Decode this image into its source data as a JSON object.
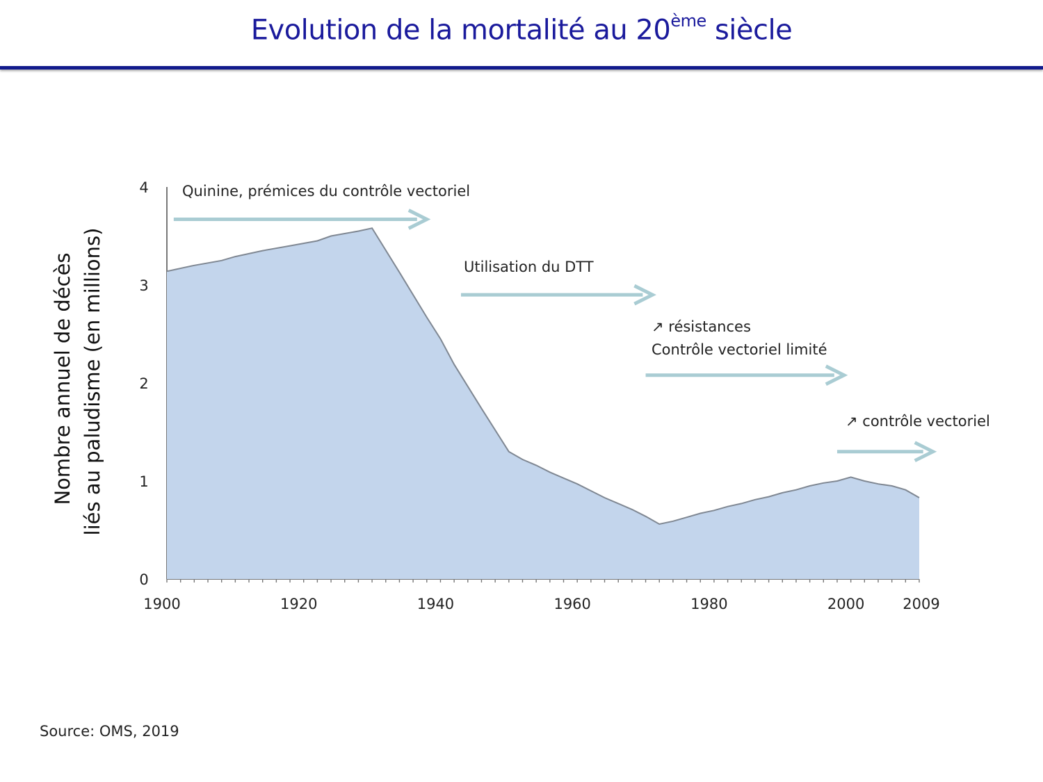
{
  "slide": {
    "title_main": "Evolution de la mortalité au 20",
    "title_sup": "ème",
    "title_end": " siècle",
    "source": "Source: OMS, 2019"
  },
  "colors": {
    "title": "#1a1a9c",
    "rule": "#111a8c",
    "area_fill": "#c3d5ec",
    "area_line": "#7f8792",
    "arrow": "#a9ccd3"
  },
  "chart_data": {
    "type": "area",
    "title": "Evolution de la mortalité au 20ème siècle",
    "ylabel_line1": "Nombre annuel de décès",
    "ylabel_line2": "liés au paludisme (en millions)",
    "xlabel": "",
    "xlim": [
      1900,
      2010
    ],
    "ylim": [
      0,
      4
    ],
    "x_ticks": [
      {
        "value": 1900,
        "label": "1900"
      },
      {
        "value": 1920,
        "label": "1920"
      },
      {
        "value": 1940,
        "label": "1940"
      },
      {
        "value": 1960,
        "label": "1960"
      },
      {
        "value": 1980,
        "label": "1980"
      },
      {
        "value": 2000,
        "label": "2000"
      },
      {
        "value": 2009,
        "label": "2009"
      }
    ],
    "y_ticks": [
      {
        "value": 0,
        "label": "0"
      },
      {
        "value": 1,
        "label": "1"
      },
      {
        "value": 2,
        "label": "2"
      },
      {
        "value": 3,
        "label": "3"
      },
      {
        "value": 4,
        "label": "4"
      }
    ],
    "series": [
      {
        "name": "Décès liés au paludisme",
        "x": [
          1900,
          1904,
          1908,
          1910,
          1914,
          1918,
          1922,
          1924,
          1928,
          1930,
          1934,
          1938,
          1940,
          1942,
          1946,
          1950,
          1952,
          1954,
          1956,
          1958,
          1960,
          1962,
          1964,
          1966,
          1968,
          1970,
          1972,
          1974,
          1976,
          1978,
          1980,
          1982,
          1984,
          1986,
          1988,
          1990,
          1992,
          1994,
          1996,
          1998,
          2000,
          2002,
          2004,
          2006,
          2008,
          2010
        ],
        "y": [
          3.14,
          3.2,
          3.25,
          3.29,
          3.35,
          3.4,
          3.45,
          3.5,
          3.55,
          3.58,
          3.13,
          2.67,
          2.45,
          2.19,
          1.74,
          1.3,
          1.22,
          1.16,
          1.09,
          1.03,
          0.97,
          0.9,
          0.83,
          0.77,
          0.71,
          0.64,
          0.56,
          0.59,
          0.63,
          0.67,
          0.7,
          0.74,
          0.77,
          0.81,
          0.84,
          0.88,
          0.91,
          0.95,
          0.98,
          1.0,
          1.04,
          1.0,
          0.97,
          0.95,
          0.91,
          0.83
        ]
      }
    ],
    "annotations": [
      {
        "lines": [
          "Quinine, prémices du contrôle vectoriel"
        ],
        "arrow_from": 1901,
        "arrow_to": 1938,
        "y": 3.67
      },
      {
        "lines": [
          "Utilisation du DTT"
        ],
        "arrow_from": 1943,
        "arrow_to": 1971,
        "y": 2.9
      },
      {
        "lines": [
          "↗ résistances",
          "Contrôle vectoriel limité"
        ],
        "arrow_from": 1970,
        "arrow_to": 1999,
        "y": 2.08
      },
      {
        "lines": [
          "↗ contrôle vectoriel"
        ],
        "arrow_from": 1998,
        "arrow_to": 2012,
        "y": 1.3
      }
    ]
  }
}
